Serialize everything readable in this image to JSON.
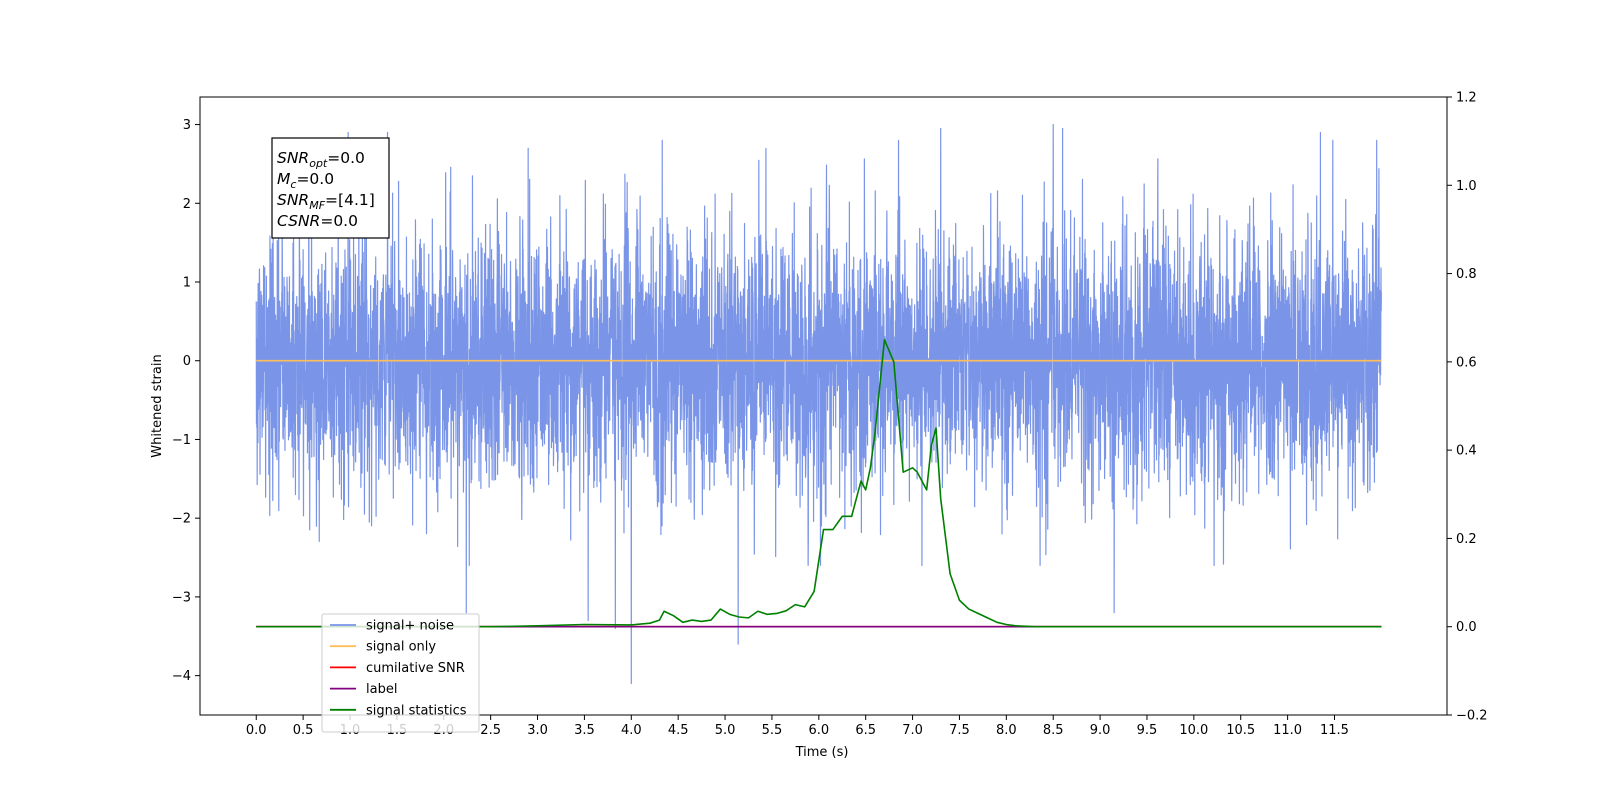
{
  "chart_data": {
    "type": "line",
    "title": "",
    "xlabel": "Time (s)",
    "ylabel": "Whitened strain",
    "y2label": "",
    "xlim": [
      -0.6,
      12.7
    ],
    "ylim": [
      -4.5,
      3.35
    ],
    "y2lim": [
      -0.2,
      1.2
    ],
    "grid": false,
    "legend_position": "lower-left",
    "x_ticks": [
      "0.0",
      "0.5",
      "1.0",
      "1.5",
      "2.0",
      "2.5",
      "3.0",
      "3.5",
      "4.0",
      "4.5",
      "5.0",
      "5.5",
      "6.0",
      "6.5",
      "7.0",
      "7.5",
      "8.0",
      "8.5",
      "9.0",
      "9.5",
      "10.0",
      "10.5",
      "11.0",
      "11.5"
    ],
    "y_ticks": [
      3,
      2,
      1,
      0,
      -1,
      -2,
      -3,
      -4
    ],
    "y_tick_labels": [
      "3",
      "2",
      "1",
      "0",
      "−1",
      "−2",
      "−3",
      "−4"
    ],
    "y2_ticks": [
      1.2,
      1.0,
      0.8,
      0.6,
      0.4,
      0.2,
      0.0,
      -0.2
    ],
    "y2_tick_labels": [
      "1.2",
      "1.0",
      "0.8",
      "0.6",
      "0.4",
      "0.2",
      "0.0",
      "−0.2"
    ],
    "info_box": [
      {
        "base": "SNR",
        "sub": "opt",
        "value": "=0.0"
      },
      {
        "base": "M",
        "sub": "c",
        "value": "=0.0"
      },
      {
        "base": "SNR",
        "sub": "MF",
        "value": "=[4.1]"
      },
      {
        "base": "CSNR",
        "sub": "",
        "value": "=0.0"
      }
    ],
    "series": [
      {
        "name": "signal+ noise",
        "color": "#7a95e8",
        "axis": "left",
        "kind": "noise",
        "x_range": [
          0.0,
          12.0
        ],
        "typical_range": [
          -1.3,
          1.3
        ],
        "envelope": [
          -2.6,
          2.8
        ],
        "notable_spikes": [
          {
            "x": 3.54,
            "y": -3.3
          },
          {
            "x": 3.83,
            "y": -3.4
          },
          {
            "x": 4.0,
            "y": -4.1
          },
          {
            "x": 5.14,
            "y": -3.6
          },
          {
            "x": 9.15,
            "y": -3.2
          },
          {
            "x": 2.24,
            "y": -3.2
          },
          {
            "x": 0.98,
            "y": 2.9
          },
          {
            "x": 1.4,
            "y": 2.9
          },
          {
            "x": 2.9,
            "y": 2.7
          },
          {
            "x": 4.33,
            "y": 2.8
          },
          {
            "x": 6.85,
            "y": 2.8
          },
          {
            "x": 8.5,
            "y": 3.0
          },
          {
            "x": 8.6,
            "y": 2.95
          },
          {
            "x": 7.3,
            "y": 2.95
          },
          {
            "x": 11.35,
            "y": 2.9
          },
          {
            "x": 11.95,
            "y": 2.8
          }
        ]
      },
      {
        "name": "signal only",
        "color": "#ffbe5c",
        "axis": "left",
        "x": [
          0.0,
          12.0
        ],
        "y": [
          0.0,
          0.0
        ]
      },
      {
        "name": "cumilative SNR",
        "color": "#ff0000",
        "axis": "right",
        "x": [
          0.0,
          12.0
        ],
        "y": [
          0.0,
          0.0
        ]
      },
      {
        "name": "label",
        "color": "#800080",
        "axis": "right",
        "x": [
          0.0,
          12.0
        ],
        "y": [
          0.0,
          0.0
        ]
      },
      {
        "name": "signal statistics",
        "color": "#008000",
        "axis": "right",
        "x": [
          0.0,
          2.5,
          3.0,
          3.5,
          4.0,
          4.2,
          4.3,
          4.35,
          4.45,
          4.55,
          4.65,
          4.75,
          4.85,
          4.95,
          5.05,
          5.15,
          5.25,
          5.35,
          5.45,
          5.55,
          5.65,
          5.75,
          5.85,
          5.95,
          6.05,
          6.15,
          6.25,
          6.35,
          6.45,
          6.5,
          6.55,
          6.6,
          6.7,
          6.8,
          6.9,
          7.0,
          7.05,
          7.15,
          7.2,
          7.25,
          7.3,
          7.4,
          7.5,
          7.6,
          7.7,
          7.8,
          7.9,
          8.0,
          8.1,
          8.3,
          9.0,
          12.0
        ],
        "y": [
          0.0,
          0.0,
          0.002,
          0.005,
          0.004,
          0.008,
          0.015,
          0.035,
          0.025,
          0.01,
          0.015,
          0.012,
          0.015,
          0.04,
          0.028,
          0.022,
          0.02,
          0.035,
          0.028,
          0.03,
          0.036,
          0.05,
          0.045,
          0.08,
          0.22,
          0.22,
          0.25,
          0.25,
          0.33,
          0.31,
          0.36,
          0.44,
          0.65,
          0.6,
          0.35,
          0.36,
          0.35,
          0.31,
          0.41,
          0.45,
          0.29,
          0.12,
          0.06,
          0.04,
          0.03,
          0.02,
          0.01,
          0.005,
          0.002,
          0.0,
          0.0,
          0.0
        ]
      }
    ]
  }
}
